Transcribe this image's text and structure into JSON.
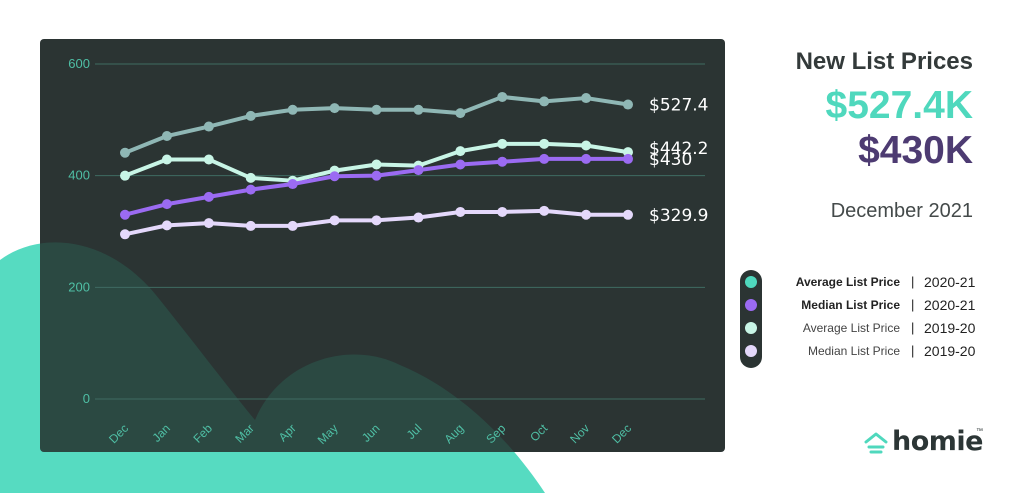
{
  "header": {
    "title": "New List Prices",
    "value_avg": "$527.4K",
    "value_median": "$430K",
    "period": "December 2021"
  },
  "colors": {
    "avg_2020_21": "#4fd8bd",
    "median_2020_21": "#9b6bf2",
    "avg_2019_20": "#c8f5e6",
    "median_2019_20": "#e4d8fb",
    "panel": "#2b3433",
    "blob": "#56dbc1"
  },
  "legend": [
    {
      "label": "Average List Price",
      "period": "2020-21",
      "bold": true,
      "color": "#4fd8bd"
    },
    {
      "label": "Median List Price",
      "period": "2020-21",
      "bold": true,
      "color": "#9b6bf2"
    },
    {
      "label": "Average List Price",
      "period": "2019-20",
      "bold": false,
      "color": "#c8f5e6"
    },
    {
      "label": "Median List Price",
      "period": "2019-20",
      "bold": false,
      "color": "#e4d8fb"
    }
  ],
  "logo": {
    "text": "homie",
    "tm": "™",
    "icon": "house-icon"
  },
  "chart_data": {
    "type": "line",
    "categories": [
      "Dec",
      "Jan",
      "Feb",
      "Mar",
      "Apr",
      "May",
      "Jun",
      "Jul",
      "Aug",
      "Sep",
      "Oct",
      "Nov",
      "Dec"
    ],
    "ylim": [
      0,
      600
    ],
    "yticks": [
      0,
      200,
      400,
      600
    ],
    "grid": true,
    "series": [
      {
        "name": "Average List Price 2020-21",
        "color": "#8fb7b5",
        "values": [
          441,
          471,
          488,
          507,
          518,
          521,
          518,
          518,
          512,
          541,
          533,
          539,
          527.4
        ],
        "end_label": "$527.4"
      },
      {
        "name": "Average List Price 2019-20",
        "color": "#c8f5e6",
        "values": [
          400,
          429,
          429,
          396,
          391,
          409,
          420,
          418,
          444,
          457,
          457,
          454,
          442.2
        ],
        "end_label": "$442.2"
      },
      {
        "name": "Median List Price 2020-21",
        "color": "#9b6bf2",
        "values": [
          330,
          349,
          362,
          375,
          385,
          399,
          400,
          410,
          420,
          425,
          430,
          430,
          430
        ],
        "end_label": "$430"
      },
      {
        "name": "Median List Price 2019-20",
        "color": "#e4d8fb",
        "values": [
          295,
          311,
          315,
          310,
          310,
          320,
          320,
          325,
          335,
          335,
          337,
          330,
          329.9
        ],
        "end_label": "$329.9"
      }
    ]
  }
}
